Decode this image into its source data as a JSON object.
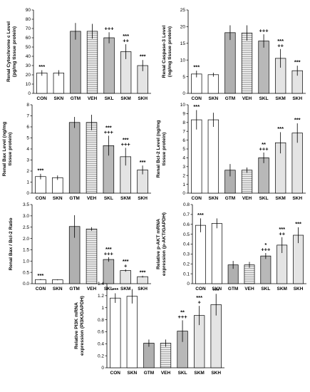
{
  "colors": {
    "white_bar": "#ffffff",
    "gtm_bar": "#b0b0b0",
    "skl_bar": "#b8b8b8",
    "light_bar": "#e4e4e4",
    "axis": "#000000"
  },
  "chart_data": [
    {
      "type": "bar",
      "categories": [
        "CON",
        "SKN",
        "GTM",
        "VEH",
        "SKL",
        "SKM",
        "SKH"
      ],
      "ylabel": "Renal Cytochrome c Level (pg/mg tissue protein)",
      "ylabel_lines": [
        "Renal Cytochrome c Level",
        "(pg/mg tissue protein)"
      ],
      "ylim": [
        0,
        90
      ],
      "yticks": [
        0,
        10,
        20,
        30,
        40,
        50,
        60,
        70,
        80,
        90
      ],
      "values": [
        22,
        22,
        67,
        67,
        60,
        45,
        30
      ],
      "errors": [
        3,
        3,
        9,
        8,
        6,
        8,
        6
      ],
      "annotations": [
        [
          "***"
        ],
        [],
        [],
        [],
        [
          "+++"
        ],
        [
          "***",
          "++"
        ],
        [
          "***"
        ]
      ]
    },
    {
      "type": "bar",
      "categories": [
        "CON",
        "SKN",
        "GTM",
        "VEH",
        "SKL",
        "SKM",
        "SKH"
      ],
      "ylabel": "Renal Caspase-3 Level (ng/mg tissue protein)",
      "ylabel_lines": [
        "Renal Caspase-3 Level",
        "(ng/mg tissue protein)"
      ],
      "ylim": [
        0,
        25
      ],
      "yticks": [
        0,
        5,
        10,
        15,
        20,
        25
      ],
      "values": [
        5.8,
        5.6,
        18.2,
        18.1,
        15.7,
        10.5,
        6.8
      ],
      "errors": [
        1,
        0.6,
        2.2,
        2.3,
        2,
        2.8,
        1.5
      ],
      "annotations": [
        [
          "***"
        ],
        [],
        [],
        [],
        [
          "+++"
        ],
        [
          "***",
          "++"
        ],
        [
          "***"
        ]
      ]
    },
    {
      "type": "bar",
      "categories": [
        "CON",
        "SKN",
        "GTM",
        "VEH",
        "SKL",
        "SKM",
        "SKH"
      ],
      "ylabel": "Renal Bax Level (ng/mg tissue protein)",
      "ylabel_lines": [
        "Renal Bax Level (ng/mg",
        "tissue protein)"
      ],
      "ylim": [
        0,
        8
      ],
      "yticks": [
        0,
        1,
        2,
        3,
        4,
        5,
        6,
        7,
        8
      ],
      "values": [
        1.5,
        1.4,
        6.4,
        6.4,
        4.3,
        3.3,
        2.1
      ],
      "errors": [
        0.25,
        0.2,
        0.5,
        0.7,
        0.9,
        0.8,
        0.4
      ],
      "annotations": [
        [
          "***"
        ],
        [],
        [],
        [],
        [
          "***",
          "+++"
        ],
        [
          "***",
          "+++"
        ],
        [
          "***"
        ]
      ]
    },
    {
      "type": "bar",
      "categories": [
        "CON",
        "SKN",
        "GTM",
        "VEH",
        "SKL",
        "SKM",
        "SKH"
      ],
      "ylabel": "Renal Bcl-2 Level (ng/mg tissue protein)",
      "ylabel_lines": [
        "Renal Bcl-2 Level (ng/mg",
        "tissue protein)"
      ],
      "ylim": [
        0,
        10
      ],
      "yticks": [
        0,
        1,
        2,
        3,
        4,
        5,
        6,
        7,
        8,
        9,
        10
      ],
      "values": [
        8.3,
        8.3,
        2.6,
        2.6,
        4.0,
        5.7,
        6.8
      ],
      "errors": [
        1.1,
        0.8,
        0.7,
        0.3,
        0.6,
        1.2,
        1.1
      ],
      "annotations": [
        [
          "***"
        ],
        [],
        [],
        [],
        [
          "**",
          "+++"
        ],
        [
          "***"
        ],
        [
          "***"
        ]
      ]
    },
    {
      "type": "bar",
      "categories": [
        "CON",
        "SKN",
        "GTM",
        "VEH",
        "SKL",
        "SKM",
        "SKH"
      ],
      "ylabel": "Renal Bax / Bcl-2 Ratio",
      "ylabel_lines": [
        "Renal Bax / Bcl-2 Ratio"
      ],
      "ylim": [
        0,
        3.5
      ],
      "yticks": [
        0.0,
        0.5,
        1.0,
        1.5,
        2.0,
        2.5,
        3.0,
        3.5
      ],
      "ytick_labels": [
        "0.0",
        "0.5",
        "1.0",
        "1.5",
        "2.0",
        "2.5",
        "3.0",
        "3.5"
      ],
      "values": [
        0.18,
        0.17,
        2.53,
        2.42,
        1.07,
        0.58,
        0.31
      ],
      "errors": [
        0.02,
        0.02,
        0.5,
        0.08,
        0.1,
        0.05,
        0.04
      ],
      "annotations": [
        [
          "***"
        ],
        [],
        [],
        [],
        [
          "***",
          "+++"
        ],
        [
          "***",
          "+"
        ],
        [
          "***"
        ]
      ]
    },
    {
      "type": "bar",
      "categories": [
        "CON",
        "SKN",
        "GTM",
        "VEH",
        "SKL",
        "SKM",
        "SKH"
      ],
      "ylabel": "Relative p-AKT mRNA expression (p-AKT/GAPDH)",
      "ylabel_lines": [
        "Relative p-AKT mRNA",
        "expression (p-AKT/GAPDH)"
      ],
      "ylim": [
        0,
        0.8
      ],
      "yticks": [
        0,
        0.1,
        0.2,
        0.3,
        0.4,
        0.5,
        0.6,
        0.7,
        0.8
      ],
      "ytick_labels": [
        "0",
        "0.1",
        "0.2",
        "0.3",
        "0.4",
        "0.5",
        "0.6",
        "0.7",
        "0.8"
      ],
      "values": [
        0.59,
        0.61,
        0.19,
        0.19,
        0.28,
        0.39,
        0.49
      ],
      "errors": [
        0.07,
        0.05,
        0.04,
        0.03,
        0.03,
        0.08,
        0.08
      ],
      "annotations": [
        [
          "***"
        ],
        [],
        [],
        [],
        [
          "*",
          "+++"
        ],
        [
          "***",
          "++"
        ],
        [
          "***"
        ]
      ]
    },
    {
      "type": "bar",
      "categories": [
        "CON",
        "SKN",
        "GTM",
        "VEH",
        "SKL",
        "SKM",
        "SKH"
      ],
      "ylabel": "Relative PI3K mRNA expression (PI3K/GAPDH)",
      "ylabel_lines": [
        "Relative PI3K mRNA",
        "expression (PI3K/GAPDH)"
      ],
      "ylim": [
        0,
        1.4
      ],
      "yticks": [
        0,
        0.2,
        0.4,
        0.6,
        0.8,
        1.0,
        1.2,
        1.4
      ],
      "ytick_labels": [
        "0",
        "0.2",
        "0.4",
        "0.6",
        "0.8",
        "1",
        "1.2",
        "1.4"
      ],
      "values": [
        1.16,
        1.19,
        0.41,
        0.41,
        0.61,
        0.87,
        1.05
      ],
      "errors": [
        0.08,
        0.12,
        0.06,
        0.06,
        0.18,
        0.16,
        0.18
      ],
      "annotations": [
        [
          "***"
        ],
        [],
        [],
        [],
        [
          "**",
          "+++"
        ],
        [
          "***",
          "+"
        ],
        [
          "***"
        ]
      ]
    }
  ]
}
